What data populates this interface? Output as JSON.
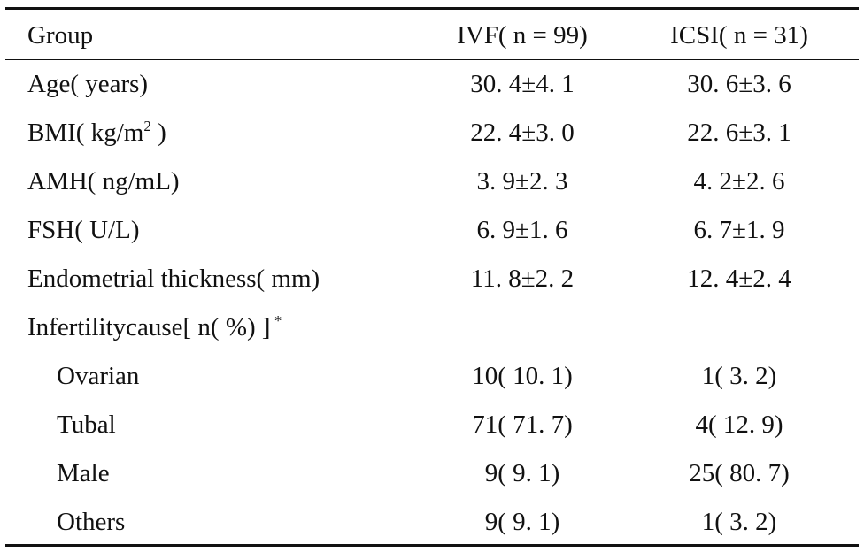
{
  "table": {
    "header": {
      "group": "Group",
      "ivf": "IVF( n = 99)",
      "icsi": "ICSI( n = 31)"
    },
    "rows": [
      {
        "label": "Age( years)",
        "ivf": "30. 4±4. 1",
        "icsi": "30. 6±3. 6"
      },
      {
        "label_pre": "BMI( kg/m",
        "label_sup": "2",
        "label_post": " )",
        "ivf": "22. 4±3. 0",
        "icsi": "22. 6±3. 1"
      },
      {
        "label": "AMH( ng/mL)",
        "ivf": "3. 9±2. 3",
        "icsi": "4. 2±2. 6"
      },
      {
        "label": "FSH( U/L)",
        "ivf": "6. 9±1. 6",
        "icsi": "6. 7±1. 9"
      },
      {
        "label": "Endometrial thickness( mm)",
        "ivf": "11. 8±2. 2",
        "icsi": "12. 4±2. 4"
      },
      {
        "label_pre": "Infertilitycause[ n( %) ]",
        "label_sup": " *"
      },
      {
        "label": "Ovarian",
        "ivf": "10( 10. 1)",
        "icsi": "1( 3. 2)"
      },
      {
        "label": "Tubal",
        "ivf": "71( 71. 7)",
        "icsi": "4( 12. 9)"
      },
      {
        "label": "Male",
        "ivf": "9( 9. 1)",
        "icsi": "25( 80. 7)"
      },
      {
        "label": "Others",
        "ivf": "9( 9. 1)",
        "icsi": "1( 3. 2)"
      }
    ]
  }
}
